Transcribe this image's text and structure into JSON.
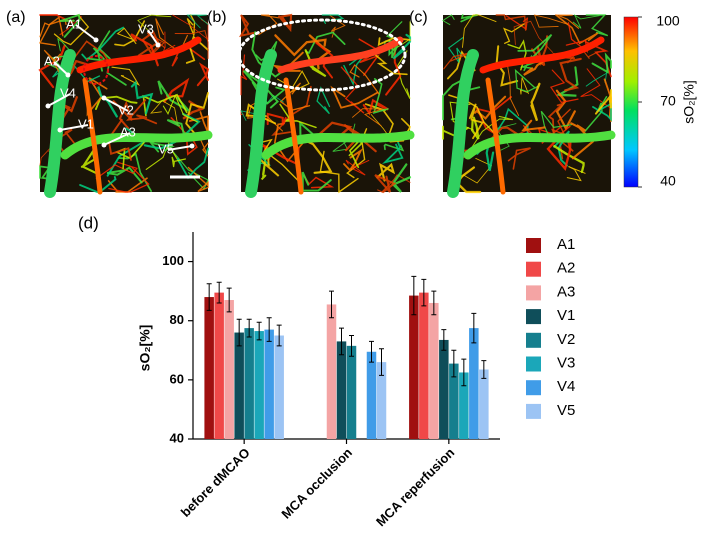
{
  "panels": [
    {
      "label": "(a)",
      "annotations": [
        "A1",
        "V3",
        "A2",
        "V4",
        "V1",
        "V2",
        "A3",
        "V5"
      ]
    },
    {
      "label": "(b)"
    },
    {
      "label": "(c)"
    }
  ],
  "colorbar": {
    "label": "sO₂[%]",
    "lim": [
      40,
      100
    ],
    "ticks": [
      100,
      70,
      40
    ]
  },
  "chart_data": {
    "type": "bar",
    "label": "(d)",
    "ylabel": "sO₂[%]",
    "categories": [
      "before dMCAO",
      "MCA occlusion",
      "MCA reperfusion"
    ],
    "ylim": [
      40,
      110
    ],
    "yticks": [
      40,
      60,
      80,
      100
    ],
    "series": [
      {
        "name": "A1",
        "color": "#a01010",
        "values": [
          88,
          null,
          88.5
        ],
        "errors": [
          4.5,
          null,
          6.5
        ]
      },
      {
        "name": "A2",
        "color": "#f04848",
        "values": [
          89.5,
          null,
          89.5
        ],
        "errors": [
          3.5,
          null,
          4.5
        ]
      },
      {
        "name": "A3",
        "color": "#f4a4a4",
        "values": [
          87,
          85.5,
          86
        ],
        "errors": [
          4,
          4.5,
          4
        ]
      },
      {
        "name": "V1",
        "color": "#0f4e5a",
        "values": [
          76,
          73,
          73.5
        ],
        "errors": [
          4.5,
          4.5,
          3.5
        ]
      },
      {
        "name": "V2",
        "color": "#157f8e",
        "values": [
          77.5,
          71.5,
          65.5
        ],
        "errors": [
          3,
          3.5,
          4.5
        ]
      },
      {
        "name": "V3",
        "color": "#1ba7b9",
        "values": [
          76.5,
          null,
          62.5
        ],
        "errors": [
          3,
          null,
          4.5
        ]
      },
      {
        "name": "V4",
        "color": "#409ce8",
        "values": [
          77,
          69.5,
          77.5
        ],
        "errors": [
          4,
          3.5,
          5
        ]
      },
      {
        "name": "V5",
        "color": "#9cc4f4",
        "values": [
          75,
          66,
          63.5
        ],
        "errors": [
          3.5,
          4.5,
          3
        ]
      }
    ]
  }
}
